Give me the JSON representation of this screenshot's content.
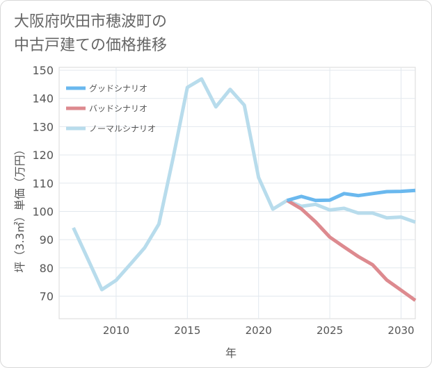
{
  "title_line1": "大阪府吹田市穂波町の",
  "title_line2": "中古戸建ての価格推移",
  "chart_data": {
    "type": "line",
    "title": "大阪府吹田市穂波町の中古戸建ての価格推移",
    "xlabel": "年",
    "ylabel": "坪（3.3㎡）単価（万円）",
    "xlim": [
      2006,
      2031
    ],
    "ylim": [
      62,
      151
    ],
    "xticks": [
      2010,
      2015,
      2020,
      2025,
      2030
    ],
    "yticks": [
      70,
      80,
      90,
      100,
      110,
      120,
      130,
      140,
      150
    ],
    "legend_position": "top-left",
    "series": [
      {
        "name": "グッドシナリオ",
        "color": "#6ab8ee",
        "x": [
          2022,
          2023,
          2024,
          2025,
          2026,
          2027,
          2028,
          2029,
          2030,
          2031
        ],
        "y": [
          103.9,
          105.3,
          103.9,
          104.0,
          106.3,
          105.6,
          106.3,
          107.0,
          107.1,
          107.4
        ]
      },
      {
        "name": "バッドシナリオ",
        "color": "#dd8a8f",
        "x": [
          2022,
          2023,
          2024,
          2025,
          2026,
          2027,
          2028,
          2029,
          2030,
          2031
        ],
        "y": [
          103.9,
          100.9,
          96.3,
          90.9,
          87.4,
          84.0,
          81.1,
          75.7,
          72.1,
          68.5
        ]
      },
      {
        "name": "ノーマルシナリオ",
        "color": "#b8dcec",
        "x": [
          2007,
          2008,
          2009,
          2010,
          2011,
          2012,
          2013,
          2014,
          2015,
          2016,
          2017,
          2018,
          2019,
          2020,
          2021,
          2022,
          2023,
          2024,
          2025,
          2026,
          2027,
          2028,
          2029,
          2030,
          2031
        ],
        "y": [
          94.2,
          83.3,
          72.3,
          75.6,
          81.3,
          87.1,
          95.5,
          118.9,
          143.9,
          146.9,
          137.0,
          143.2,
          137.6,
          112.0,
          100.8,
          103.9,
          101.8,
          102.5,
          100.5,
          101.1,
          99.4,
          99.4,
          97.7,
          98.0,
          96.2
        ]
      }
    ]
  }
}
